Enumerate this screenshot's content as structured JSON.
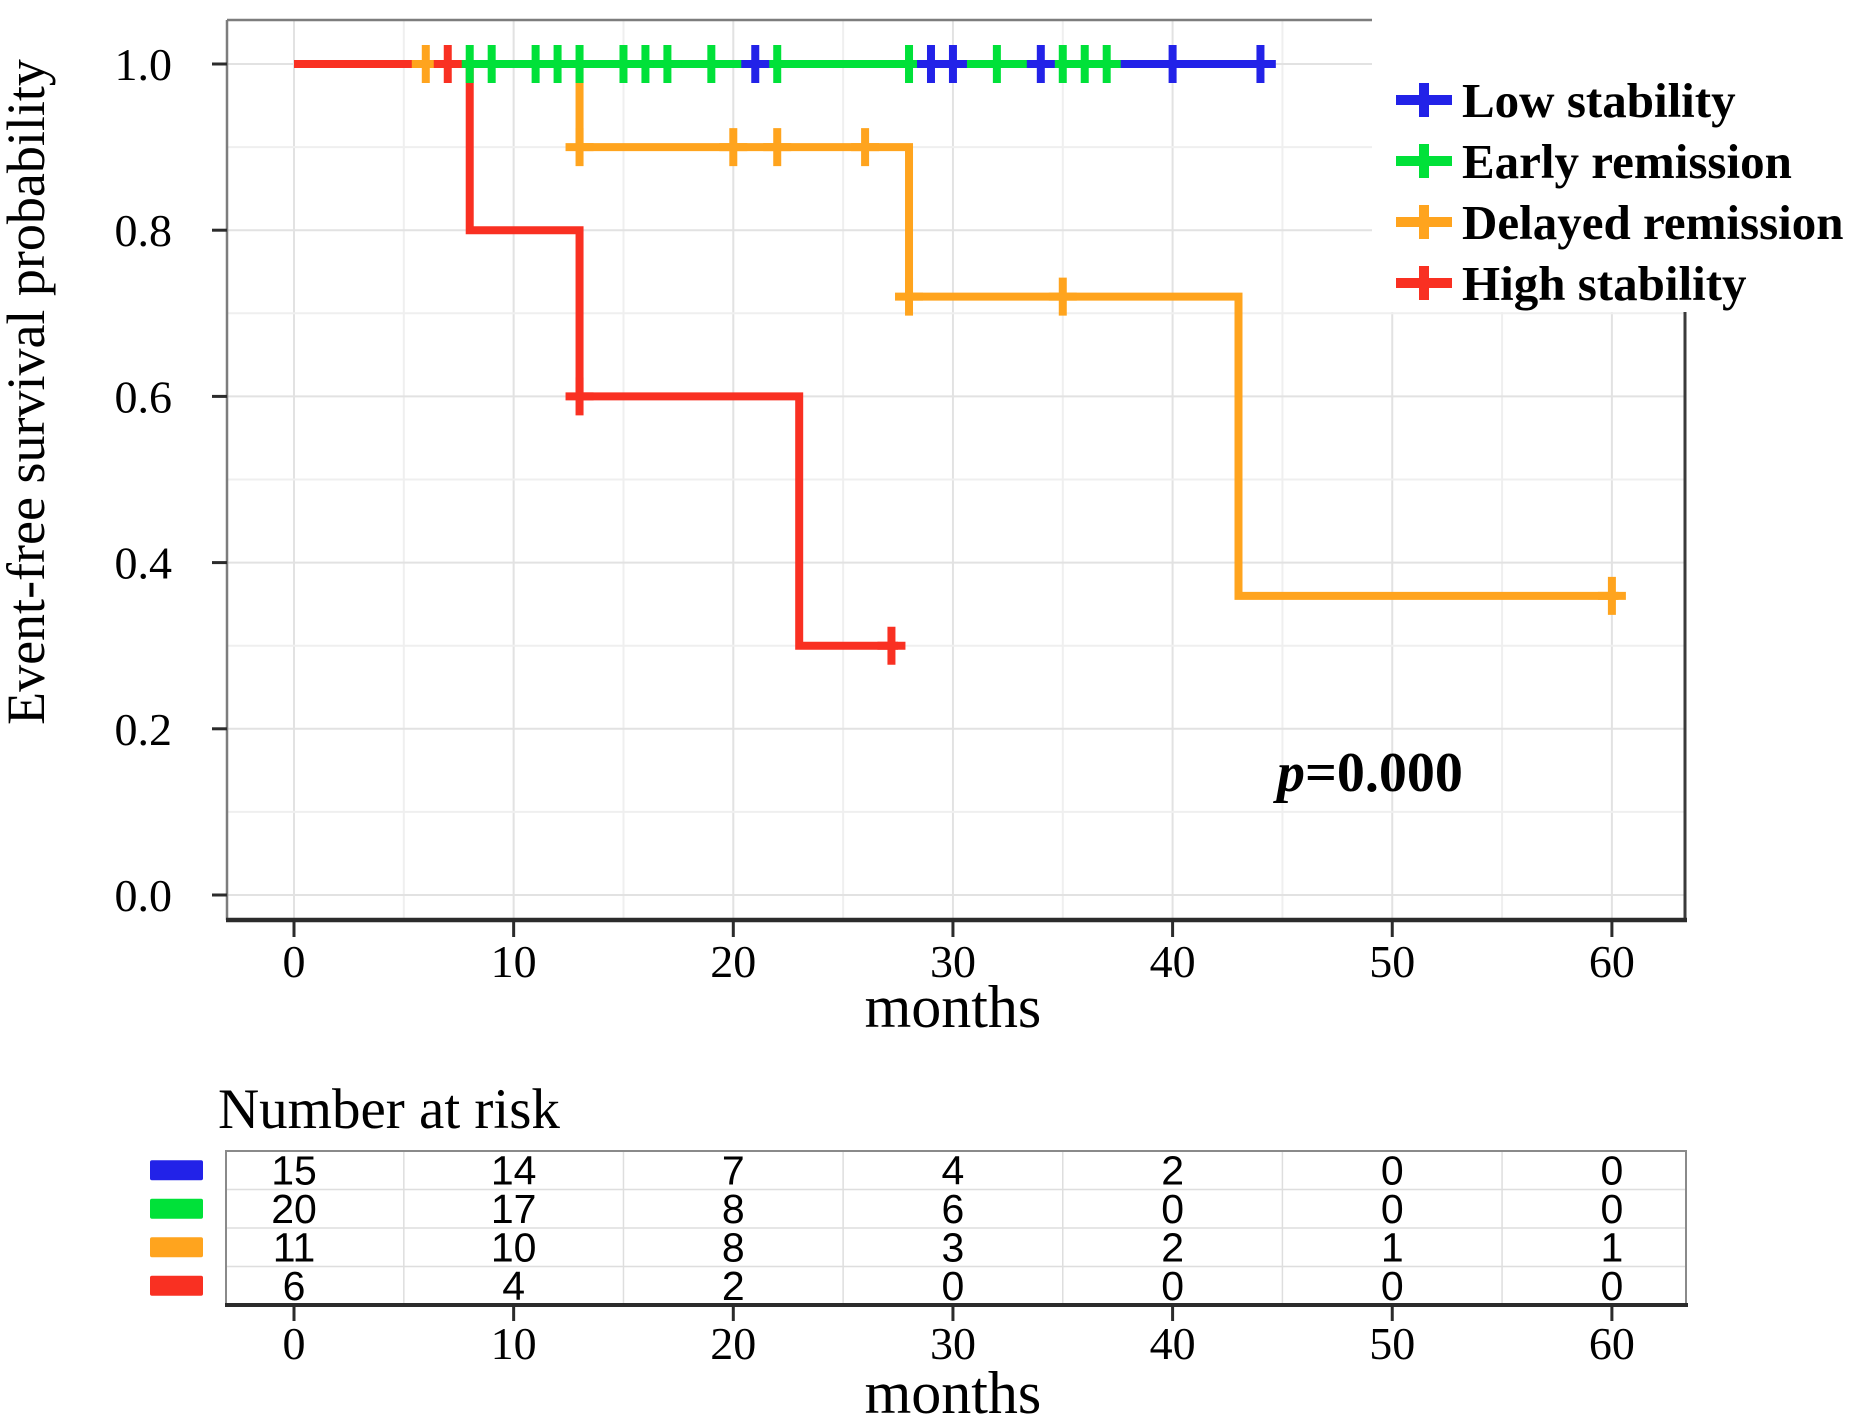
{
  "chart_data": {
    "type": "line",
    "subtype": "kaplan-meier-step-curves",
    "title": "",
    "xlabel": "months",
    "ylabel": "Event-free survival probability",
    "xlim": [
      -3,
      63.5
    ],
    "ylim": [
      -0.03,
      1.05
    ],
    "xticks": [
      0,
      10,
      20,
      30,
      40,
      50,
      60
    ],
    "ytick_labels": [
      "1.0",
      "0.8",
      "0.6",
      "0.4",
      "0.2",
      "0.0"
    ],
    "grid": "on",
    "legend_position": "top-right",
    "p_value": {
      "text": "p=0.000",
      "italic": "p",
      "rest": "=0.000"
    },
    "series": [
      {
        "name": "Low stability",
        "slug": "low-stability",
        "color": "#2222e8",
        "steps": [
          [
            0,
            1.0
          ],
          [
            44.7,
            1.0
          ]
        ],
        "censors": [
          [
            21,
            1.0
          ],
          [
            29,
            1.0
          ],
          [
            30,
            1.0
          ],
          [
            34,
            1.0
          ],
          [
            40,
            1.0
          ],
          [
            44,
            1.0
          ]
        ]
      },
      {
        "name": "Early remission",
        "slug": "early-remission",
        "color": "#00e139",
        "steps": [
          [
            0,
            1.0
          ],
          [
            37.3,
            1.0
          ]
        ],
        "censors": [
          [
            8,
            1.0
          ],
          [
            9,
            1.0
          ],
          [
            11,
            1.0
          ],
          [
            12,
            1.0
          ],
          [
            13,
            1.0
          ],
          [
            15,
            1.0
          ],
          [
            16,
            1.0
          ],
          [
            17,
            1.0
          ],
          [
            19,
            1.0
          ],
          [
            22,
            1.0
          ],
          [
            28,
            1.0
          ],
          [
            32,
            1.0
          ],
          [
            35,
            1.0
          ],
          [
            36,
            1.0
          ],
          [
            37,
            1.0
          ]
        ]
      },
      {
        "name": "Delayed remission",
        "slug": "delayed-remission",
        "color": "#ffa41e",
        "steps": [
          [
            0,
            1.0
          ],
          [
            13,
            1.0
          ],
          [
            13,
            0.9
          ],
          [
            28,
            0.9
          ],
          [
            28,
            0.72
          ],
          [
            43,
            0.72
          ],
          [
            43,
            0.36
          ],
          [
            60.3,
            0.36
          ]
        ],
        "censors": [
          [
            6,
            1.0
          ],
          [
            13,
            0.9
          ],
          [
            20,
            0.9
          ],
          [
            22,
            0.9
          ],
          [
            26,
            0.9
          ],
          [
            28,
            0.72
          ],
          [
            35,
            0.72
          ],
          [
            60,
            0.36
          ]
        ]
      },
      {
        "name": "High stability",
        "slug": "high-stability",
        "color": "#f93022",
        "steps": [
          [
            0,
            1.0
          ],
          [
            8,
            1.0
          ],
          [
            8,
            0.8
          ],
          [
            13,
            0.8
          ],
          [
            13,
            0.6
          ],
          [
            23,
            0.6
          ],
          [
            23,
            0.3
          ],
          [
            27.5,
            0.3
          ]
        ],
        "censors": [
          [
            7,
            1.0
          ],
          [
            13,
            0.6
          ],
          [
            27.2,
            0.3
          ]
        ]
      }
    ],
    "risk_table": {
      "title": "Number at risk",
      "xlabel": "months",
      "columns": [
        0,
        10,
        20,
        30,
        40,
        50,
        60
      ],
      "rows": [
        {
          "name": "Low stability",
          "slug": "low-stability",
          "color": "#2222e8",
          "values": [
            15,
            14,
            7,
            4,
            2,
            0,
            0
          ]
        },
        {
          "name": "Early remission",
          "slug": "early-remission",
          "color": "#00e139",
          "values": [
            20,
            17,
            8,
            6,
            0,
            0,
            0
          ]
        },
        {
          "name": "Delayed remission",
          "slug": "delayed-remission",
          "color": "#ffa41e",
          "values": [
            11,
            10,
            8,
            3,
            2,
            1,
            1
          ]
        },
        {
          "name": "High stability",
          "slug": "high-stability",
          "color": "#f93022",
          "values": [
            6,
            4,
            2,
            0,
            0,
            0,
            0
          ]
        }
      ]
    },
    "style_colors": {
      "grid_major": "#e2e2e2",
      "grid_minor": "#efefef",
      "panel_border": "#7d7d7d",
      "axis_line": "#2b2b2b",
      "table_grid": "#dedede",
      "table_border": "#8a8a8a"
    }
  }
}
